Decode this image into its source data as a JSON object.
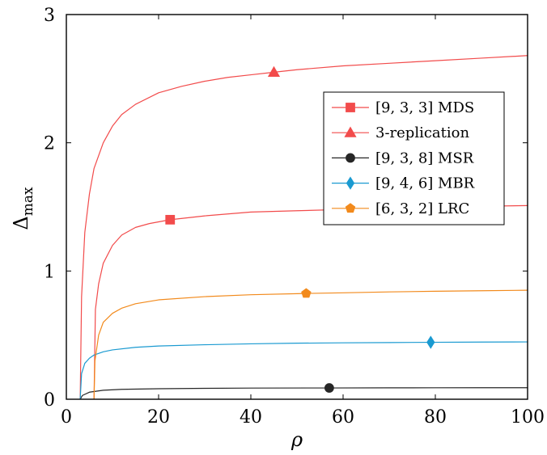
{
  "chart_data": {
    "type": "line",
    "xlabel": "ρ",
    "ylabel": "Δ",
    "ylabel_sub": "max",
    "xlim": [
      0,
      100
    ],
    "ylim": [
      0,
      3
    ],
    "xticks": [
      0,
      20,
      40,
      60,
      80,
      100
    ],
    "yticks": [
      0,
      1,
      2,
      3
    ],
    "grid": false,
    "legend_position": "center-right",
    "series": [
      {
        "name": "[9, 3, 3] MDS",
        "color": "#f24b4b",
        "marker": "square",
        "x": [
          6,
          6.3,
          7,
          8,
          10,
          12,
          15,
          18,
          22.5,
          30,
          40,
          50,
          60,
          70,
          80,
          90,
          100
        ],
        "y": [
          0,
          0.7,
          0.9,
          1.06,
          1.2,
          1.28,
          1.34,
          1.37,
          1.4,
          1.43,
          1.46,
          1.47,
          1.48,
          1.49,
          1.5,
          1.505,
          1.51
        ],
        "marker_points": [
          {
            "x": 22.5,
            "y": 1.4
          }
        ]
      },
      {
        "name": "3-replication",
        "color": "#f24b4b",
        "marker": "triangle",
        "x": [
          3,
          3.3,
          4,
          5,
          6,
          8,
          10,
          12,
          15,
          20,
          25,
          30,
          35,
          40,
          45,
          50,
          60,
          70,
          80,
          90,
          100
        ],
        "y": [
          0,
          0.8,
          1.3,
          1.6,
          1.8,
          2.0,
          2.13,
          2.22,
          2.3,
          2.39,
          2.44,
          2.48,
          2.51,
          2.53,
          2.55,
          2.57,
          2.6,
          2.62,
          2.64,
          2.66,
          2.68
        ],
        "marker_points": [
          {
            "x": 45,
            "y": 2.55
          }
        ]
      },
      {
        "name": "[9, 3, 8] MSR",
        "color": "#262626",
        "marker": "circle",
        "x": [
          3,
          3.5,
          5,
          8,
          12,
          20,
          30,
          40,
          57,
          70,
          80,
          90,
          100
        ],
        "y": [
          0,
          0.03,
          0.055,
          0.07,
          0.077,
          0.082,
          0.085,
          0.087,
          0.088,
          0.089,
          0.0895,
          0.09,
          0.09
        ],
        "marker_points": [
          {
            "x": 57,
            "y": 0.088
          }
        ]
      },
      {
        "name": "[9, 4, 6] MBR",
        "color": "#1a9ad1",
        "marker": "diamond",
        "x": [
          3,
          3.3,
          4,
          5,
          6,
          8,
          10,
          15,
          20,
          30,
          40,
          50,
          60,
          70,
          79,
          90,
          100
        ],
        "y": [
          0,
          0.2,
          0.28,
          0.32,
          0.345,
          0.37,
          0.385,
          0.405,
          0.415,
          0.425,
          0.432,
          0.437,
          0.44,
          0.442,
          0.444,
          0.446,
          0.447
        ],
        "marker_points": [
          {
            "x": 79,
            "y": 0.444
          }
        ]
      },
      {
        "name": "[6, 3, 2] LRC",
        "color": "#f28a1c",
        "marker": "pentagon",
        "x": [
          6,
          6.2,
          7,
          8,
          10,
          12,
          15,
          20,
          30,
          40,
          52,
          60,
          70,
          80,
          90,
          100
        ],
        "y": [
          0,
          0.3,
          0.5,
          0.6,
          0.67,
          0.71,
          0.745,
          0.775,
          0.8,
          0.815,
          0.825,
          0.83,
          0.837,
          0.842,
          0.846,
          0.85
        ],
        "marker_points": [
          {
            "x": 52,
            "y": 0.825
          }
        ]
      }
    ]
  }
}
